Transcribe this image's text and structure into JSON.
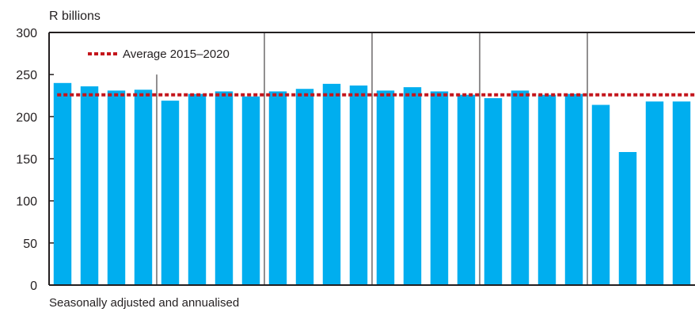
{
  "chart_data": {
    "type": "bar",
    "ylabel": "R billions",
    "note": "Seasonally adjusted and annualised",
    "ylim": [
      0,
      300
    ],
    "yticks": [
      0,
      50,
      100,
      150,
      200,
      250,
      300
    ],
    "values": [
      240,
      236,
      231,
      232,
      219,
      227,
      230,
      224,
      230,
      233,
      239,
      237,
      231,
      235,
      230,
      226,
      222,
      231,
      226,
      227,
      214,
      158,
      218,
      218
    ],
    "period_separators_after_bar": [
      3,
      7,
      11,
      15,
      19
    ],
    "reference_line": {
      "label": "Average 2015–2020",
      "value": 226
    },
    "colors": {
      "bars": "#00aeef",
      "reference_line": "#c4161c",
      "axis": "#231f20"
    },
    "legend_position": "top-left",
    "grid": false
  }
}
